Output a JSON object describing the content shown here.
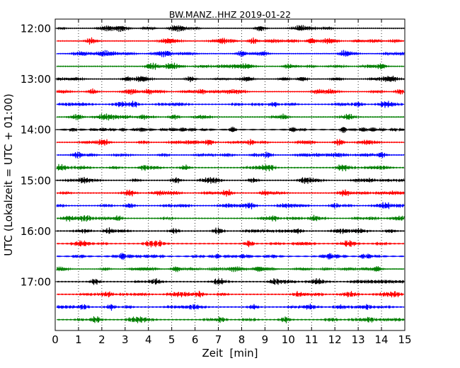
{
  "chart_data": {
    "type": "line",
    "title": "BW.MANZ..HHZ 2019-01-22",
    "xlabel": "Zeit  [min]",
    "ylabel": "UTC (Lokalzeit = UTC + 01:00)",
    "xlim": [
      0,
      15
    ],
    "x_ticks": [
      "0",
      "1",
      "2",
      "3",
      "4",
      "5",
      "6",
      "7",
      "8",
      "9",
      "10",
      "11",
      "12",
      "13",
      "14",
      "15"
    ],
    "y_tick_labels": [
      "12:00",
      "13:00",
      "14:00",
      "15:00",
      "16:00",
      "17:00"
    ],
    "trace_start_time": "12:00",
    "trace_interval_minutes": 15,
    "trace_count": 24,
    "trace_colors": [
      "#000000",
      "#ff0000",
      "#0000ff",
      "#007f00"
    ],
    "vertical_grid": "dotted at each minute",
    "series": [
      {
        "label": "12:00",
        "color": "#000000",
        "peaks_min": [
          2.8,
          5.3,
          8.8,
          10.5
        ]
      },
      {
        "label": "12:15",
        "color": "#ff0000",
        "peaks_min": [
          1.5,
          7.2,
          8.5,
          11.0
        ]
      },
      {
        "label": "12:30",
        "color": "#0000ff",
        "peaks_min": [
          2.1,
          4.8,
          8.0,
          12.4
        ]
      },
      {
        "label": "12:45",
        "color": "#007f00",
        "peaks_min": [
          4.2,
          5.0,
          10.0,
          14.0
        ]
      },
      {
        "label": "13:00",
        "color": "#000000",
        "peaks_min": [
          3.1,
          5.8,
          10.6
        ]
      },
      {
        "label": "13:15",
        "color": "#ff0000",
        "peaks_min": [
          1.6,
          4.0,
          6.3,
          14.8
        ]
      },
      {
        "label": "13:30",
        "color": "#0000ff",
        "peaks_min": [
          3.4,
          9.4,
          13.0
        ]
      },
      {
        "label": "13:45",
        "color": "#007f00",
        "peaks_min": [
          1.0,
          5.1,
          9.8,
          12.6
        ]
      },
      {
        "label": "14:00",
        "color": "#000000",
        "peaks_min": [
          3.6,
          7.6,
          12.4
        ]
      },
      {
        "label": "14:15",
        "color": "#ff0000",
        "peaks_min": [
          2.1,
          6.6,
          8.4,
          12.2
        ]
      },
      {
        "label": "14:30",
        "color": "#0000ff",
        "peaks_min": [
          1.0,
          9.1,
          14.0
        ]
      },
      {
        "label": "14:45",
        "color": "#007f00",
        "peaks_min": [
          3.8,
          9.2,
          12.3
        ]
      },
      {
        "label": "15:00",
        "color": "#000000",
        "peaks_min": [
          1.2,
          5.2,
          8.5,
          10.7
        ]
      },
      {
        "label": "15:15",
        "color": "#ff0000",
        "peaks_min": [
          3.2,
          7.4,
          9.0,
          12.4
        ]
      },
      {
        "label": "15:30",
        "color": "#0000ff",
        "peaks_min": [
          3.2,
          8.4,
          12.0,
          14.2
        ]
      },
      {
        "label": "15:45",
        "color": "#007f00",
        "peaks_min": [
          1.3,
          2.7,
          9.4,
          11.1
        ]
      },
      {
        "label": "16:00",
        "color": "#000000",
        "peaks_min": [
          2.3,
          5.1,
          7.0,
          10.4
        ]
      },
      {
        "label": "16:15",
        "color": "#ff0000",
        "peaks_min": [
          4.0,
          8.3,
          12.6
        ]
      },
      {
        "label": "16:30",
        "color": "#0000ff",
        "peaks_min": [
          2.9,
          6.9,
          13.3
        ]
      },
      {
        "label": "16:45",
        "color": "#007f00",
        "peaks_min": [
          5.2,
          8.7,
          13.8
        ]
      },
      {
        "label": "17:00",
        "color": "#000000",
        "peaks_min": [
          1.7,
          4.3,
          7.0,
          9.4
        ]
      },
      {
        "label": "17:15",
        "color": "#ff0000",
        "peaks_min": [
          2.3,
          6.2,
          10.4,
          14.6
        ]
      },
      {
        "label": "17:30",
        "color": "#0000ff",
        "peaks_min": [
          1.2,
          2.4,
          8.5,
          13.4
        ]
      },
      {
        "label": "17:45",
        "color": "#007f00",
        "peaks_min": [
          1.7,
          7.1,
          9.9,
          13.5
        ]
      }
    ]
  }
}
